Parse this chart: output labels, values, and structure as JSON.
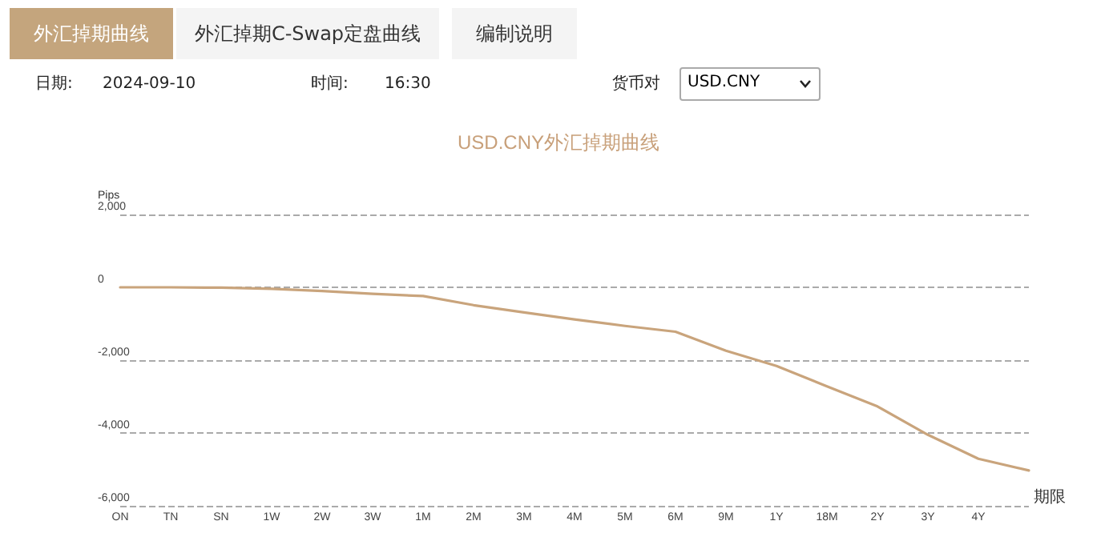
{
  "chart_data": {
    "type": "line",
    "title": "USD.CNY外汇掉期曲线",
    "xlabel": "期限",
    "ylabel": "Pips",
    "annotations": [
      "外汇掉期曲线",
      "外汇掉期C-Swap定盘曲线",
      "编制说明",
      "日期:",
      "2024-09-10",
      "时间:",
      "16:30",
      "货币对",
      "USD.CNY"
    ],
    "categories": [
      "ON",
      "TN",
      "SN",
      "1W",
      "2W",
      "3W",
      "1M",
      "2M",
      "3M",
      "4M",
      "5M",
      "6M",
      "9M",
      "1Y",
      "18M",
      "2Y",
      "3Y",
      "4Y",
      null
    ],
    "series": [
      {
        "color": "#c9a47c",
        "values": [
          0,
          0,
          -10,
          -40,
          -100,
          -180,
          -240,
          -490,
          -690,
          -880,
          -1060,
          -1220,
          -1740,
          -2160,
          -2720,
          -3270,
          -4050,
          -4710,
          -5030
        ]
      }
    ],
    "ylim": [
      -6000,
      2000
    ],
    "yticks": [
      {
        "value": -6000,
        "label": "-6,000"
      },
      {
        "value": -4000,
        "label": "-4,000"
      },
      {
        "value": -2000,
        "label": "-2,000"
      },
      0,
      {
        "value": 2000,
        "label": "2,000"
      }
    ],
    "grid": "y",
    "marker": "none",
    "line_style": "solid"
  }
}
